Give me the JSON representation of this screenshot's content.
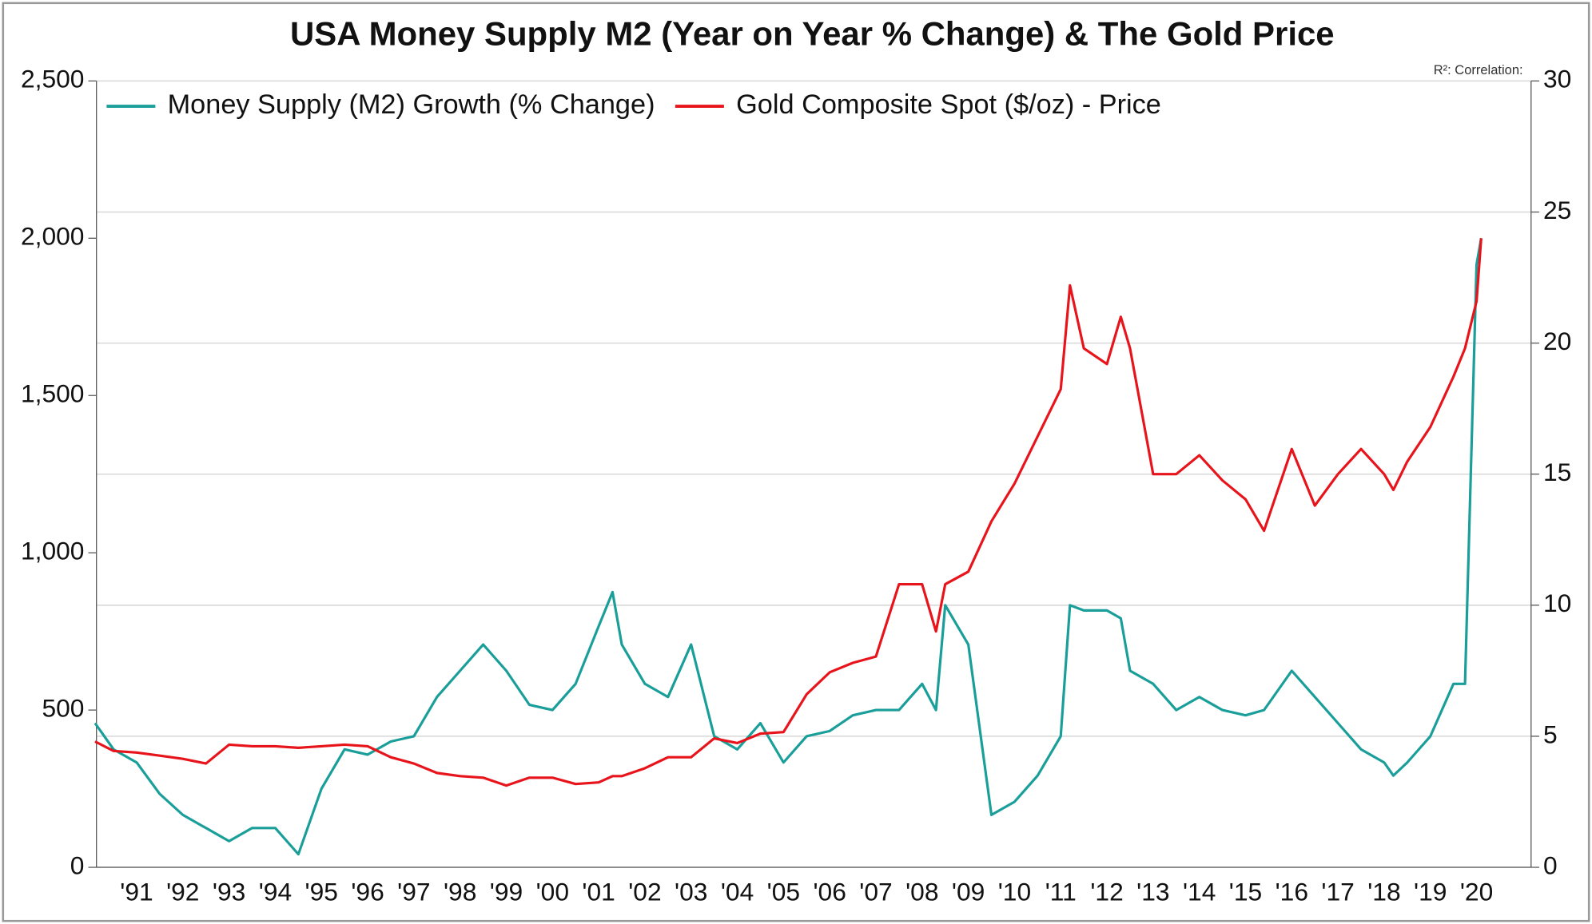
{
  "chart_data": {
    "type": "line",
    "title": "USA Money Supply M2 (Year on Year % Change) & The Gold Price",
    "annotation": "R²: Correlation:",
    "x": [
      1990.6,
      1991,
      1991.5,
      1992,
      1992.5,
      1993,
      1993.5,
      1994,
      1994.5,
      1995,
      1995.5,
      1996,
      1996.5,
      1997,
      1997.5,
      1998,
      1998.5,
      1999,
      1999.5,
      2000,
      2000.5,
      2001,
      2001.5,
      2001.8,
      2002,
      2002.5,
      2003,
      2003.5,
      2004,
      2004.5,
      2005,
      2005.5,
      2006,
      2006.5,
      2007,
      2007.5,
      2008,
      2008.5,
      2008.8,
      2009,
      2009.5,
      2010,
      2010.5,
      2011,
      2011.5,
      2011.7,
      2012,
      2012.5,
      2012.8,
      2013,
      2013.5,
      2014,
      2014.5,
      2015,
      2015.5,
      2015.9,
      2016.5,
      2017,
      2017.5,
      2018,
      2018.5,
      2018.7,
      2019,
      2019.5,
      2020,
      2020.25,
      2020.5,
      2020.6
    ],
    "series": [
      {
        "name": "Money Supply (M2) Growth (% Change)",
        "color": "#1a9e9a",
        "axis": "y2",
        "values": [
          5.5,
          4.5,
          4,
          2.8,
          2,
          1.5,
          1,
          1.5,
          1.5,
          0.5,
          3,
          4.5,
          4.3,
          4.8,
          5,
          6.5,
          7.5,
          8.5,
          7.5,
          6.2,
          6,
          7,
          9.2,
          10.5,
          8.5,
          7,
          6.5,
          8.5,
          5,
          4.5,
          5.5,
          4,
          5,
          5.2,
          5.8,
          6,
          6,
          7,
          6,
          10,
          8.5,
          2,
          2.5,
          3.5,
          5,
          10,
          9.8,
          9.8,
          9.5,
          7.5,
          7,
          6,
          6.5,
          6,
          5.8,
          6,
          7.5,
          6.5,
          5.5,
          4.5,
          4,
          3.5,
          4,
          5,
          7,
          7,
          23,
          24
        ]
      },
      {
        "name": "Gold Composite Spot ($/oz) - Price",
        "color": "#e8141b",
        "values": [
          400,
          370,
          365,
          355,
          345,
          330,
          390,
          385,
          385,
          380,
          385,
          390,
          385,
          350,
          330,
          300,
          290,
          285,
          260,
          285,
          285,
          265,
          270,
          290,
          290,
          315,
          350,
          350,
          410,
          395,
          425,
          430,
          550,
          620,
          650,
          670,
          900,
          900,
          750,
          900,
          940,
          1100,
          1220,
          1370,
          1520,
          1850,
          1650,
          1600,
          1750,
          1650,
          1250,
          1250,
          1310,
          1230,
          1170,
          1070,
          1330,
          1150,
          1250,
          1330,
          1250,
          1200,
          1290,
          1400,
          1560,
          1650,
          1800,
          2000
        ]
      }
    ],
    "xlim": [
      1990.63,
      2021.68
    ],
    "xticks": [
      {
        "value": 1991.5,
        "label": "'91"
      },
      {
        "value": 1992.5,
        "label": "'92"
      },
      {
        "value": 1993.5,
        "label": "'93"
      },
      {
        "value": 1994.5,
        "label": "'94"
      },
      {
        "value": 1995.5,
        "label": "'95"
      },
      {
        "value": 1996.5,
        "label": "'96"
      },
      {
        "value": 1997.5,
        "label": "'97"
      },
      {
        "value": 1998.5,
        "label": "'98"
      },
      {
        "value": 1999.5,
        "label": "'99"
      },
      {
        "value": 2000.5,
        "label": "'00"
      },
      {
        "value": 2001.5,
        "label": "'01"
      },
      {
        "value": 2002.5,
        "label": "'02"
      },
      {
        "value": 2003.5,
        "label": "'03"
      },
      {
        "value": 2004.5,
        "label": "'04"
      },
      {
        "value": 2005.5,
        "label": "'05"
      },
      {
        "value": 2006.5,
        "label": "'06"
      },
      {
        "value": 2007.5,
        "label": "'07"
      },
      {
        "value": 2008.5,
        "label": "'08"
      },
      {
        "value": 2009.5,
        "label": "'09"
      },
      {
        "value": 2010.5,
        "label": "'10"
      },
      {
        "value": 2011.5,
        "label": "'11"
      },
      {
        "value": 2012.5,
        "label": "'12"
      },
      {
        "value": 2013.5,
        "label": "'13"
      },
      {
        "value": 2014.5,
        "label": "'14"
      },
      {
        "value": 2015.5,
        "label": "'15"
      },
      {
        "value": 2016.5,
        "label": "'16"
      },
      {
        "value": 2017.5,
        "label": "'17"
      },
      {
        "value": 2018.5,
        "label": "'18"
      },
      {
        "value": 2019.5,
        "label": "'19"
      },
      {
        "value": 2020.5,
        "label": "'20"
      }
    ],
    "ylim": [
      0,
      2500
    ],
    "yticks": [
      0,
      500,
      {
        "value": 1000,
        "label": "1,000"
      },
      {
        "value": 1500,
        "label": "1,500"
      },
      {
        "value": 2000,
        "label": "2,000"
      },
      {
        "value": 2500,
        "label": "2,500"
      }
    ],
    "y2lim": [
      0,
      30
    ],
    "y2ticks": [
      0,
      5,
      10,
      15,
      20,
      25,
      30
    ],
    "grid": "y2",
    "legend": "top-left"
  }
}
